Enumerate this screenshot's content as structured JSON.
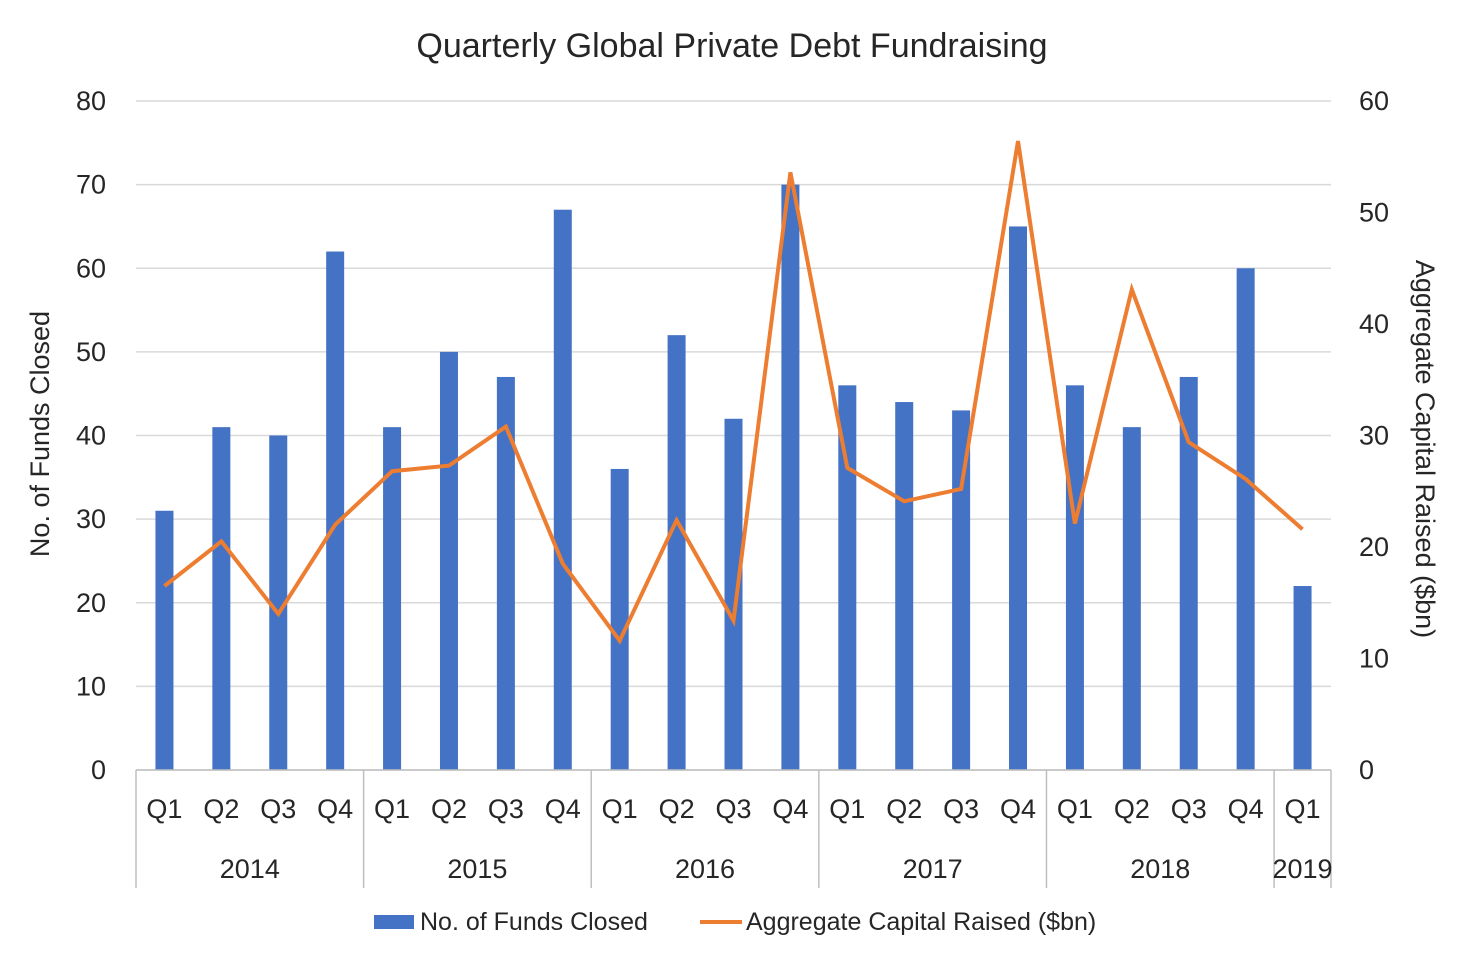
{
  "chart_data": {
    "type": "bar",
    "title": "Quarterly Global Private Debt Fundraising",
    "categories": [
      "Q1",
      "Q2",
      "Q3",
      "Q4",
      "Q1",
      "Q2",
      "Q3",
      "Q4",
      "Q1",
      "Q2",
      "Q3",
      "Q4",
      "Q1",
      "Q2",
      "Q3",
      "Q4",
      "Q1",
      "Q2",
      "Q3",
      "Q4",
      "Q1"
    ],
    "groups": [
      {
        "label": "2014",
        "count": 4
      },
      {
        "label": "2015",
        "count": 4
      },
      {
        "label": "2016",
        "count": 4
      },
      {
        "label": "2017",
        "count": 4
      },
      {
        "label": "2018",
        "count": 4
      },
      {
        "label": "2019",
        "count": 1
      }
    ],
    "series": [
      {
        "name": "No. of Funds Closed",
        "type": "bar",
        "axis": "left",
        "color": "#4472C4",
        "values": [
          31,
          41,
          40,
          62,
          41,
          50,
          47,
          67,
          36,
          52,
          42,
          70,
          46,
          44,
          43,
          65,
          46,
          41,
          47,
          60,
          22
        ]
      },
      {
        "name": "Aggregate Capital Raised ($bn)",
        "type": "line",
        "axis": "right",
        "color": "#ED7D31",
        "values": [
          16.5,
          20.5,
          14,
          22,
          26.8,
          27.3,
          30.8,
          18.5,
          11.6,
          22.4,
          13.4,
          53.6,
          27.1,
          24.1,
          25.2,
          56.4,
          22.1,
          43.1,
          29.4,
          26.1,
          21.6
        ]
      }
    ],
    "ylabel": "No. of Funds Closed",
    "y2label": "Aggregate Capital Raised ($bn)",
    "ylim": [
      0,
      80
    ],
    "y2lim": [
      0,
      60
    ],
    "yticks": [
      "0",
      "10",
      "20",
      "30",
      "40",
      "50",
      "60",
      "70",
      "80"
    ],
    "y2ticks": [
      "0",
      "10",
      "20",
      "30",
      "40",
      "50",
      "60"
    ],
    "grid": true,
    "legend_position": "bottom"
  }
}
